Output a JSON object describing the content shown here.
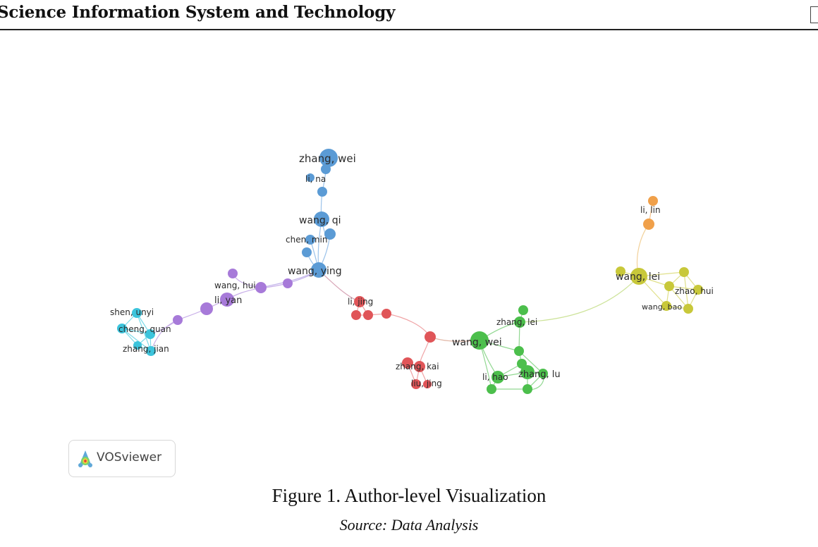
{
  "header": {
    "journal_title": "Science Information System and Technology"
  },
  "figure": {
    "caption": "Figure 1. Author-level Visualization",
    "source": "Source: Data Analysis",
    "tool_badge": {
      "label": "VOSviewer",
      "icon": "vosviewer-logo-icon"
    }
  },
  "network": {
    "clusters": [
      {
        "id": "blue",
        "color": "#5b9bd5",
        "nodes": [
          "zhang, wei",
          "li, na",
          "wang, qi",
          "chen, min",
          "wang, ying"
        ]
      },
      {
        "id": "purple",
        "color": "#a77ad9",
        "nodes": [
          "wang, hui",
          "li, yan"
        ]
      },
      {
        "id": "cyan",
        "color": "#3cc4dc",
        "nodes": [
          "shen, unyi",
          "cheng, quan",
          "zhang, jian"
        ]
      },
      {
        "id": "red",
        "color": "#e05558",
        "nodes": [
          "li, jing",
          "zhang, kai",
          "liu, jing"
        ]
      },
      {
        "id": "green",
        "color": "#4cbf4c",
        "nodes": [
          "wang, wei",
          "zhang, lei",
          "li, hao",
          "zhang, lu"
        ]
      },
      {
        "id": "yellow",
        "color": "#c8c83a",
        "nodes": [
          "wang, lei",
          "zhao, hui",
          "wang, bao"
        ]
      },
      {
        "id": "orange",
        "color": "#f0a04a",
        "nodes": [
          "li, lin"
        ]
      }
    ],
    "labels": {
      "zhang_wei": "zhang, wei",
      "li_na": "li, na",
      "wang_qi": "wang, qi",
      "chen_min": "chen, min",
      "wang_ying": "wang, ying",
      "wang_hui": "wang, hui",
      "li_yan": "li, yan",
      "shen_unyi": "shen, unyi",
      "cheng_quan": "cheng, quan",
      "zhang_jian": "zhang, jian",
      "li_jing": "li, jing",
      "zhang_kai": "zhang, kai",
      "liu_jing": "liu, jing",
      "wang_wei": "wang, wei",
      "zhang_lei": "zhang, lei",
      "li_hao": "li, hao",
      "zhang_lu": "zhang, lu",
      "wang_lei": "wang, lei",
      "zhao_hui": "zhao, hui",
      "wang_bao": "wang, bao",
      "li_lin": "li, lin"
    }
  }
}
